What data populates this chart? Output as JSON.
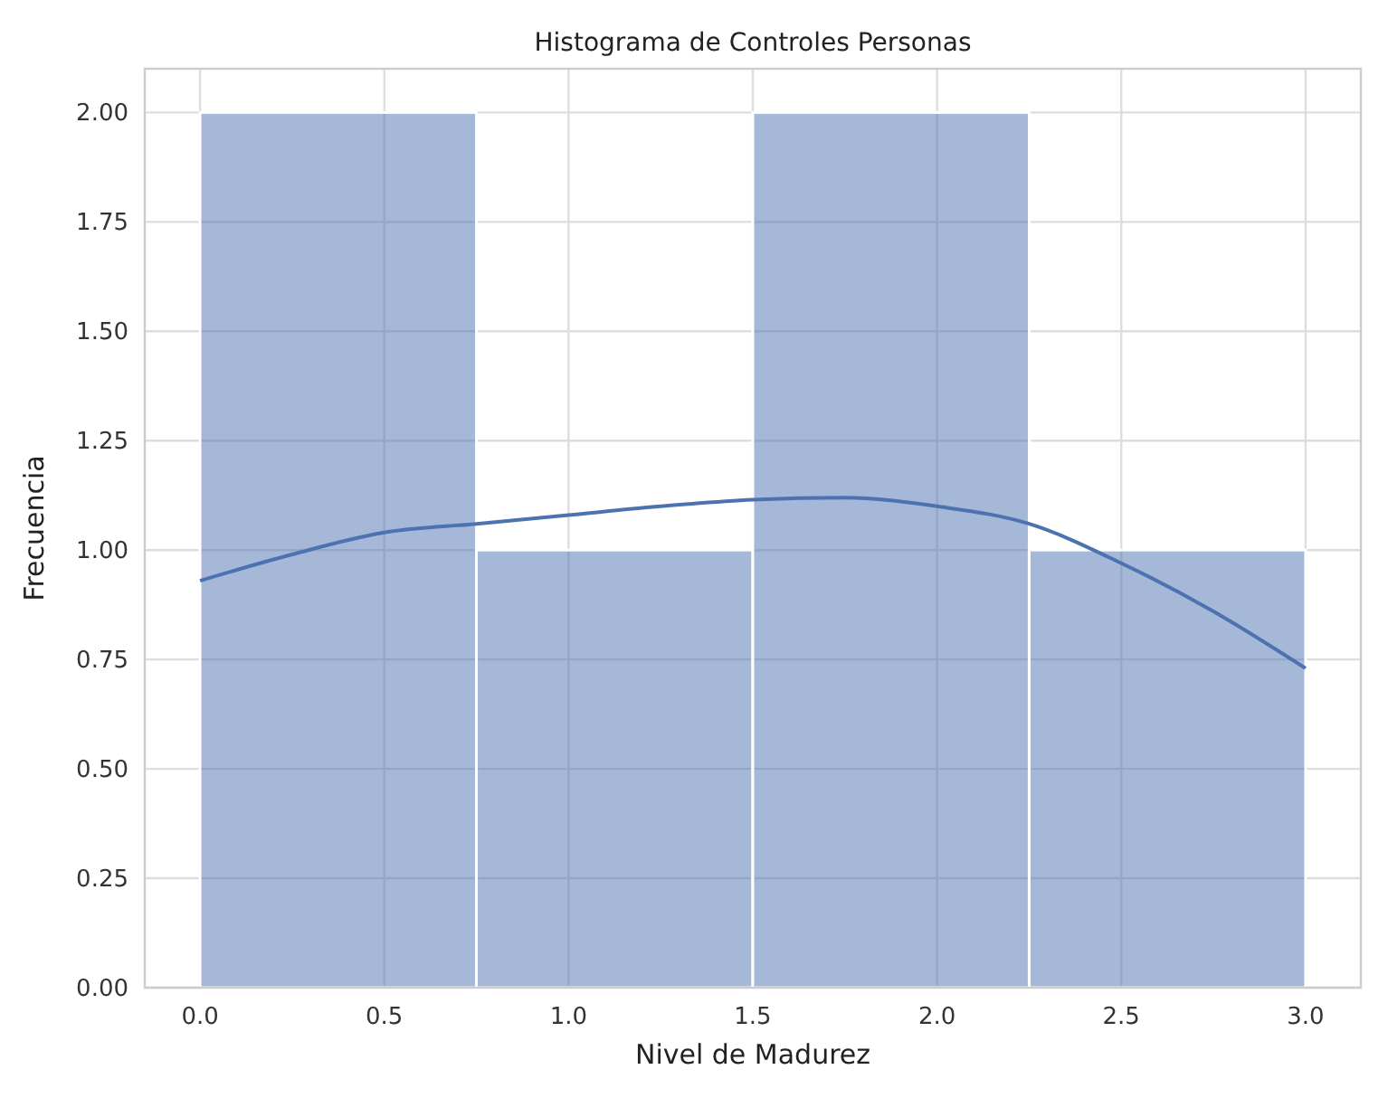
{
  "chart_data": {
    "type": "histogram",
    "title": "Histograma de Controles Personas",
    "xlabel": "Nivel de Madurez",
    "ylabel": "Frecuencia",
    "xlim": [
      -0.15,
      3.15
    ],
    "xticks": [
      {
        "value": 0,
        "label": "0.0"
      },
      {
        "value": 0.5,
        "label": "0.5"
      },
      {
        "value": 1,
        "label": "1.0"
      },
      {
        "value": 1.5,
        "label": "1.5"
      },
      {
        "value": 2,
        "label": "2.0"
      },
      {
        "value": 2.5,
        "label": "2.5"
      },
      {
        "value": 3,
        "label": "3.0"
      }
    ],
    "ylim": [
      0,
      2.1
    ],
    "yticks": [
      {
        "value": 0,
        "label": "0.00"
      },
      {
        "value": 0.25,
        "label": "0.25"
      },
      {
        "value": 0.5,
        "label": "0.50"
      },
      {
        "value": 0.75,
        "label": "0.75"
      },
      {
        "value": 1,
        "label": "1.00"
      },
      {
        "value": 1.25,
        "label": "1.25"
      },
      {
        "value": 1.5,
        "label": "1.50"
      },
      {
        "value": 1.75,
        "label": "1.75"
      },
      {
        "value": 2,
        "label": "2.00"
      }
    ],
    "grid": true,
    "series": [
      {
        "color": "#4c72b0",
        "bins": [
          0,
          0.75,
          1.5,
          2.25,
          3
        ],
        "values": [
          2,
          1,
          2,
          1
        ]
      },
      {
        "type": "line",
        "color": "#4c72b0",
        "x": [
          0,
          0.25,
          0.5,
          0.75,
          1,
          1.25,
          1.5,
          1.75,
          2,
          2.25,
          2.5,
          2.75,
          3
        ],
        "values": [
          0.93,
          0.99,
          1.04,
          1.06,
          1.08,
          1.1,
          1.115,
          1.12,
          1.1,
          1.06,
          0.97,
          0.86,
          0.73
        ]
      }
    ]
  }
}
